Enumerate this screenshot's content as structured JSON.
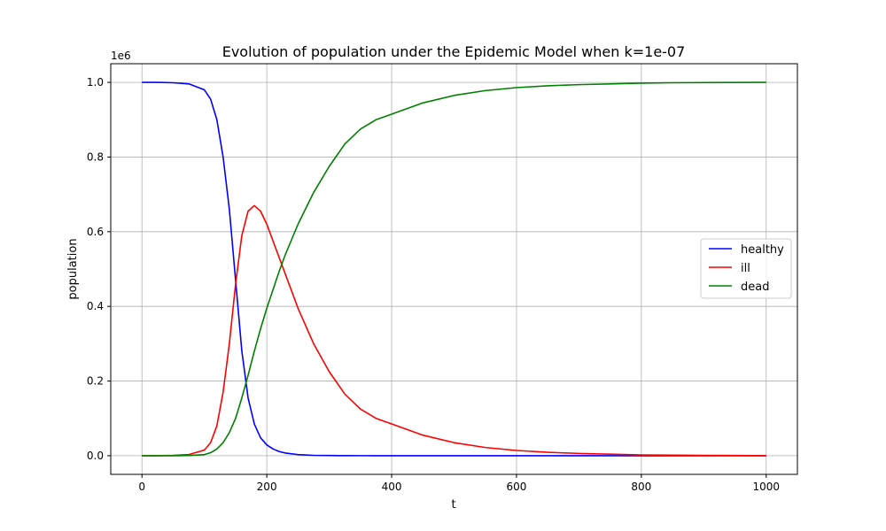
{
  "chart_data": {
    "type": "line",
    "title": "Evolution of population under the Epidemic Model when k=1e-07",
    "xlabel": "t",
    "ylabel": "population",
    "y_offset_label": "1e6",
    "xlim": [
      -50,
      1050
    ],
    "ylim": [
      -0.05,
      1.05
    ],
    "y_scale_multiplier": 1000000,
    "x_ticks": [
      0,
      200,
      400,
      600,
      800,
      1000
    ],
    "x_tick_labels": [
      "0",
      "200",
      "400",
      "600",
      "800",
      "1000"
    ],
    "y_ticks": [
      0.0,
      0.2,
      0.4,
      0.6,
      0.8,
      1.0
    ],
    "y_tick_labels": [
      "0.0",
      "0.2",
      "0.4",
      "0.6",
      "0.8",
      "1.0"
    ],
    "grid": true,
    "legend_position": "center-right",
    "x": [
      0,
      25,
      50,
      75,
      100,
      110,
      120,
      130,
      140,
      150,
      160,
      170,
      180,
      190,
      200,
      210,
      220,
      230,
      240,
      250,
      275,
      300,
      325,
      350,
      375,
      400,
      450,
      500,
      550,
      600,
      650,
      700,
      750,
      800,
      850,
      900,
      950,
      1000
    ],
    "series": [
      {
        "name": "healthy",
        "color": "#0000ff",
        "values": [
          1.0,
          1.0,
          0.999,
          0.996,
          0.98,
          0.955,
          0.9,
          0.8,
          0.66,
          0.47,
          0.28,
          0.155,
          0.085,
          0.048,
          0.029,
          0.018,
          0.011,
          0.007,
          0.005,
          0.003,
          0.001,
          0.0005,
          0.0002,
          0.0001,
          0.0,
          0.0,
          0.0,
          0.0,
          0.0,
          0.0,
          0.0,
          0.0,
          0.0,
          0.0,
          0.0,
          0.0,
          0.0,
          0.0
        ]
      },
      {
        "name": "ill",
        "color": "#ff0000",
        "values": [
          0.0,
          0.0,
          0.001,
          0.003,
          0.015,
          0.035,
          0.08,
          0.17,
          0.3,
          0.46,
          0.59,
          0.655,
          0.67,
          0.655,
          0.62,
          0.575,
          0.53,
          0.485,
          0.44,
          0.395,
          0.3,
          0.225,
          0.165,
          0.125,
          0.1,
          0.085,
          0.055,
          0.035,
          0.022,
          0.014,
          0.009,
          0.006,
          0.004,
          0.002,
          0.0015,
          0.001,
          0.0005,
          0.0
        ]
      },
      {
        "name": "dead",
        "color": "#008000",
        "values": [
          0.0,
          0.0,
          0.0,
          0.0005,
          0.003,
          0.008,
          0.018,
          0.035,
          0.062,
          0.1,
          0.155,
          0.215,
          0.28,
          0.34,
          0.395,
          0.445,
          0.495,
          0.54,
          0.58,
          0.62,
          0.705,
          0.775,
          0.835,
          0.875,
          0.9,
          0.915,
          0.945,
          0.965,
          0.978,
          0.986,
          0.991,
          0.994,
          0.996,
          0.998,
          0.999,
          0.9995,
          0.9998,
          1.0
        ]
      }
    ]
  }
}
